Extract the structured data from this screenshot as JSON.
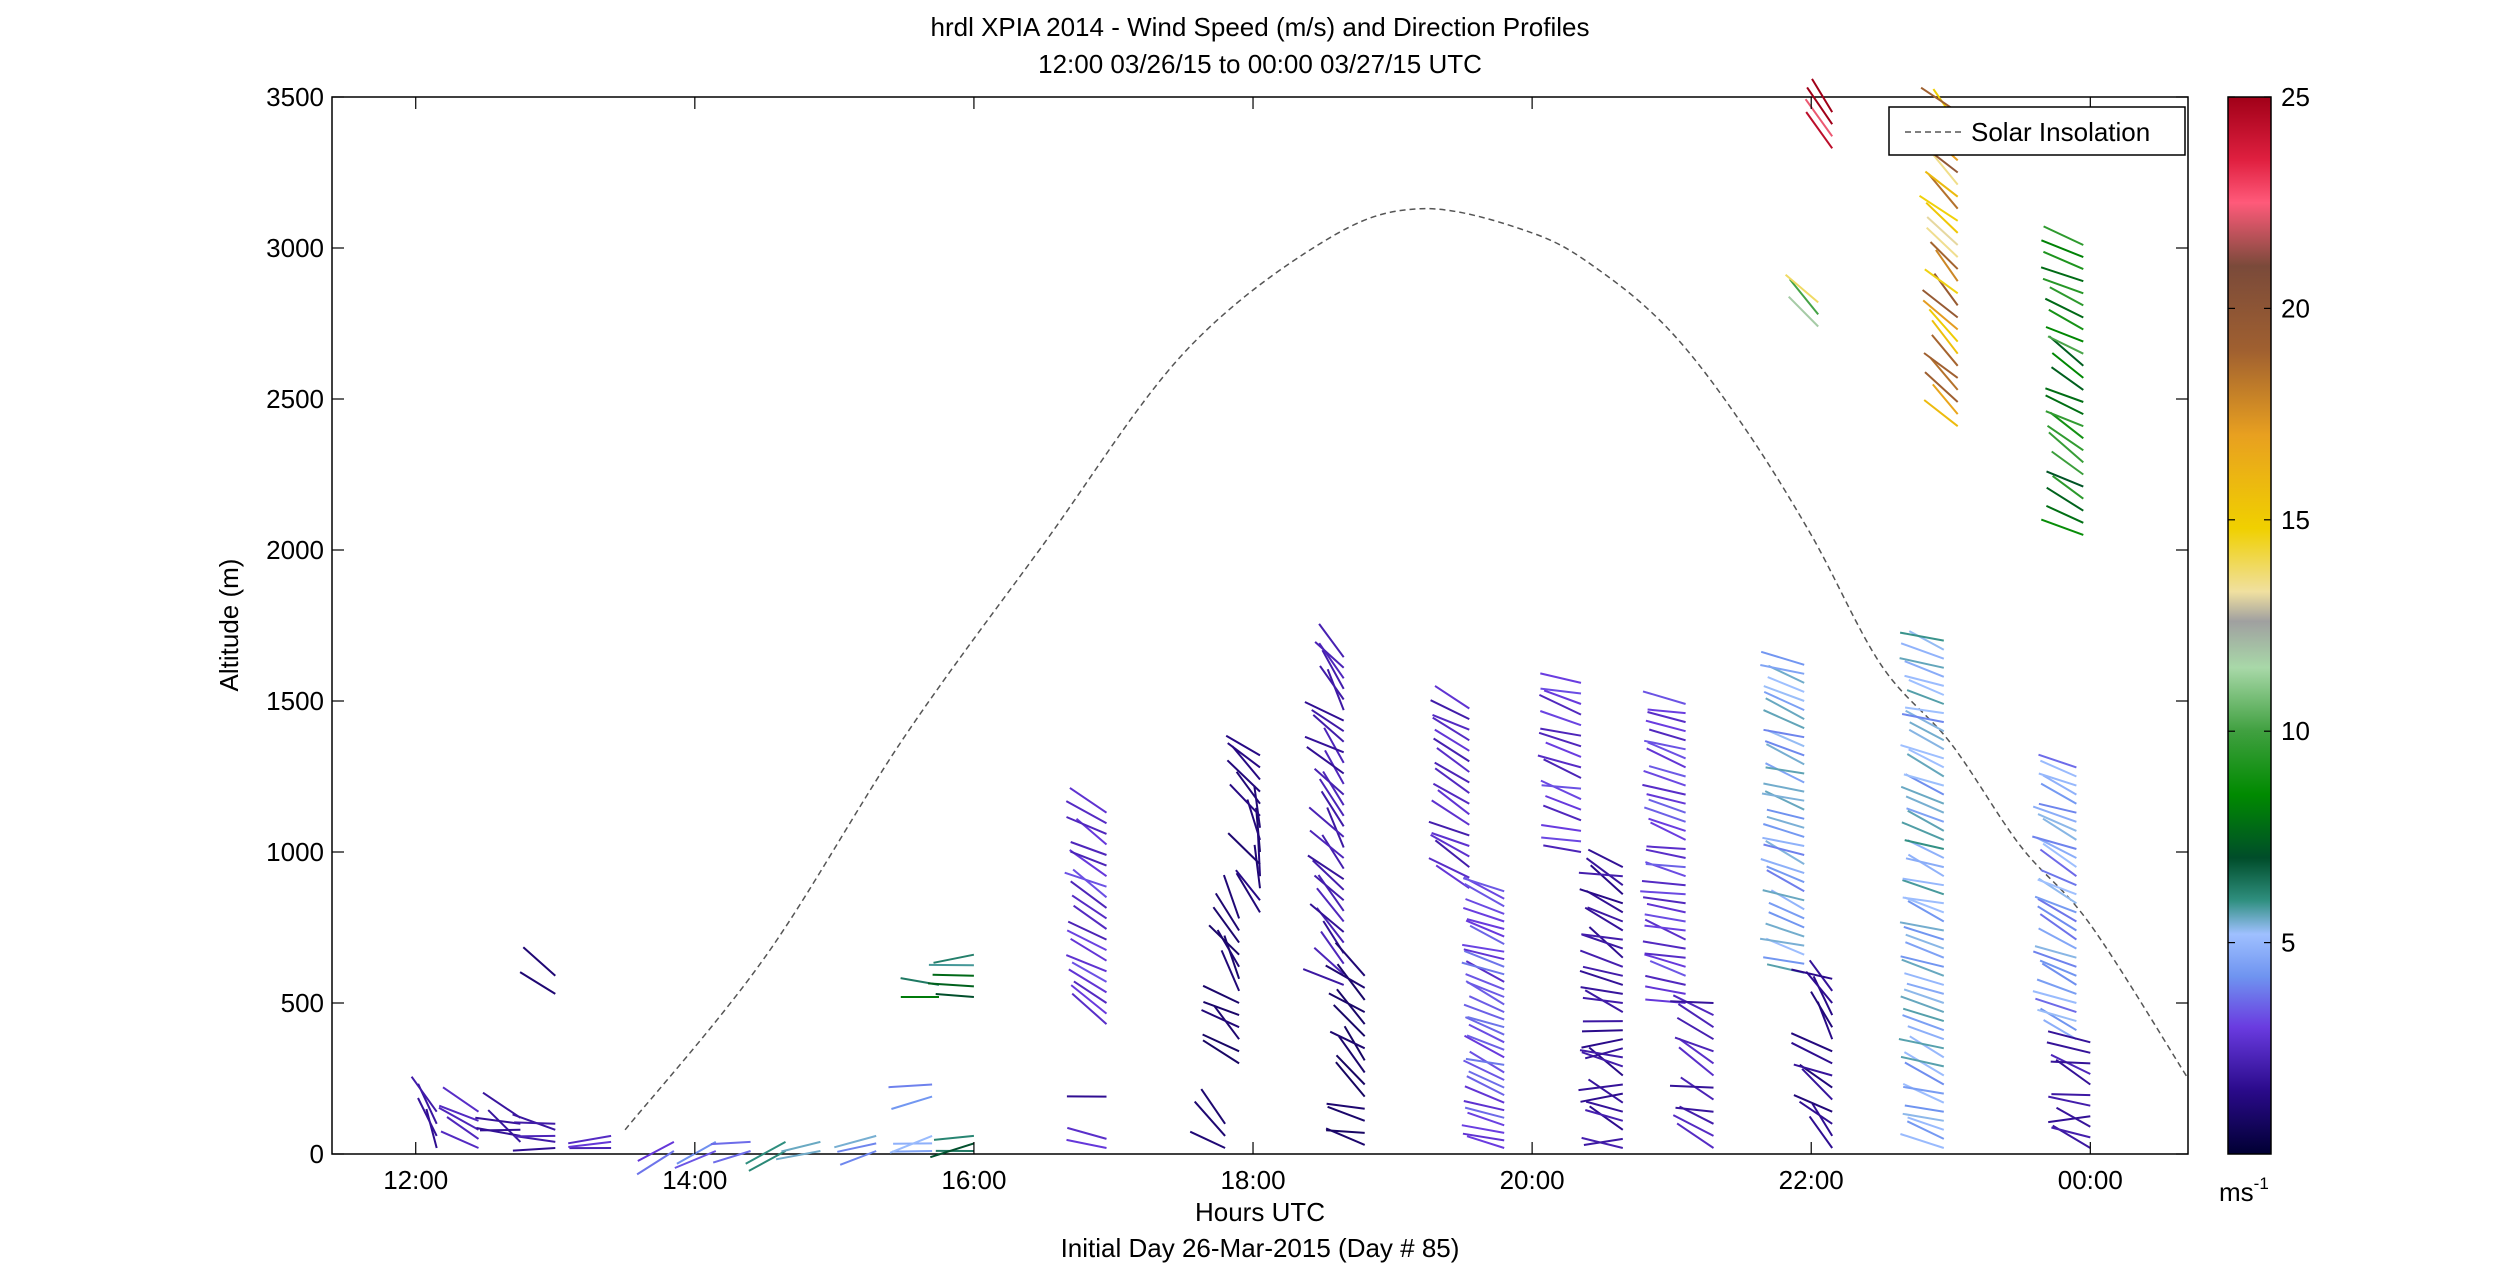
{
  "title_line1": "hrdl XPIA 2014 - Wind Speed (m/s) and Direction Profiles",
  "title_line2": "12:00 03/26/15 to 00:00 03/27/15  UTC",
  "xlabel": "Hours UTC",
  "subtitle": "Initial Day 26-Mar-2015 (Day # 85)",
  "ylabel": "Altitude (m)",
  "legend_label": "Solar Insolation",
  "colorbar_unit": "ms",
  "colorbar_unit_exp": "-1",
  "chart_data": {
    "type": "wind-barb-profile",
    "x_unit": "hours UTC from 12:00 03/26/15",
    "xlim": [
      11.4,
      24.7
    ],
    "ylim": [
      0,
      3500
    ],
    "x_ticks": [
      12,
      14,
      16,
      18,
      20,
      22,
      24
    ],
    "x_tick_labels": [
      "12:00",
      "14:00",
      "16:00",
      "18:00",
      "20:00",
      "22:00",
      "00:00"
    ],
    "y_ticks": [
      0,
      500,
      1000,
      1500,
      2000,
      2500,
      3000,
      3500
    ],
    "y_tick_labels": [
      "0",
      "500",
      "1000",
      "1500",
      "2000",
      "2500",
      "3000",
      "3500"
    ],
    "colorbar": {
      "range": [
        0,
        25
      ],
      "ticks": [
        5,
        10,
        15,
        20,
        25
      ],
      "tick_labels": [
        "5",
        "10",
        "15",
        "20",
        "25"
      ],
      "stops": [
        {
          "v": 0,
          "c": "#000033"
        },
        {
          "v": 1.5,
          "c": "#2a0a8a"
        },
        {
          "v": 3,
          "c": "#6a3be0"
        },
        {
          "v": 4.2,
          "c": "#6f94f0"
        },
        {
          "v": 5.2,
          "c": "#9fc0ff"
        },
        {
          "v": 6,
          "c": "#2f8f7f"
        },
        {
          "v": 7,
          "c": "#004d2a"
        },
        {
          "v": 8.5,
          "c": "#008a00"
        },
        {
          "v": 10,
          "c": "#40a040"
        },
        {
          "v": 11.5,
          "c": "#a8d8a8"
        },
        {
          "v": 12.6,
          "c": "#a0a0a0"
        },
        {
          "v": 13.3,
          "c": "#f0e0a0"
        },
        {
          "v": 14.8,
          "c": "#f0d000"
        },
        {
          "v": 17,
          "c": "#e8a020"
        },
        {
          "v": 19,
          "c": "#a06030"
        },
        {
          "v": 21,
          "c": "#7a4a3a"
        },
        {
          "v": 22.5,
          "c": "#ff5a7a"
        },
        {
          "v": 23.5,
          "c": "#e02040"
        },
        {
          "v": 25,
          "c": "#a00018"
        }
      ]
    },
    "solar_insolation": {
      "style": "dashed",
      "color": "#555555",
      "x": [
        13.5,
        14.5,
        15.5,
        16.5,
        17.5,
        18.5,
        19.2,
        20.0,
        20.5,
        21.0,
        21.5,
        22.0,
        22.5,
        23.0,
        23.5,
        24.0,
        24.7
      ],
      "y": [
        80,
        650,
        1380,
        2020,
        2650,
        3020,
        3130,
        3050,
        2920,
        2720,
        2420,
        2050,
        1620,
        1360,
        1020,
        760,
        250
      ]
    },
    "profiles": [
      {
        "t": 12.15,
        "z0": 20,
        "z1": 140,
        "dz": 40,
        "spd": 2.0,
        "dir": 320
      },
      {
        "t": 12.45,
        "z0": 20,
        "z1": 140,
        "dz": 30,
        "spd": 2.2,
        "dir": 300
      },
      {
        "t": 12.75,
        "z0": 40,
        "z1": 120,
        "dz": 20,
        "spd": 1.8,
        "dir": 290
      },
      {
        "t": 13.0,
        "z0": 20,
        "z1": 100,
        "dz": 20,
        "spd": 2.0,
        "dir": 280
      },
      {
        "t": 13.0,
        "z0": 530,
        "z1": 590,
        "dz": 60,
        "spd": 1.2,
        "dir": 310
      },
      {
        "t": 13.4,
        "z0": 20,
        "z1": 60,
        "dz": 20,
        "spd": 2.5,
        "dir": 260
      },
      {
        "t": 13.85,
        "z0": 10,
        "z1": 40,
        "dz": 30,
        "spd": 3.2,
        "dir": 240
      },
      {
        "t": 14.15,
        "z0": 10,
        "z1": 40,
        "dz": 30,
        "spd": 3.6,
        "dir": 250
      },
      {
        "t": 14.4,
        "z0": 10,
        "z1": 40,
        "dz": 30,
        "spd": 4.4,
        "dir": 255
      },
      {
        "t": 14.65,
        "z0": 10,
        "z1": 40,
        "dz": 30,
        "spd": 5.8,
        "dir": 250
      },
      {
        "t": 14.9,
        "z0": 10,
        "z1": 40,
        "dz": 30,
        "spd": 4.8,
        "dir": 250
      },
      {
        "t": 15.3,
        "z0": 10,
        "z1": 60,
        "dz": 25,
        "spd": 5.0,
        "dir": 255
      },
      {
        "t": 15.7,
        "z0": 10,
        "z1": 80,
        "dz": 25,
        "spd": 5.1,
        "dir": 260
      },
      {
        "t": 16.0,
        "z0": 10,
        "z1": 60,
        "dz": 25,
        "spd": 6.0,
        "dir": 260
      },
      {
        "t": 15.7,
        "z0": 190,
        "z1": 230,
        "dz": 40,
        "spd": 4.8,
        "dir": 260
      },
      {
        "t": 15.75,
        "z0": 520,
        "z1": 560,
        "dz": 40,
        "spd": 7.5,
        "dir": 270
      },
      {
        "t": 16.0,
        "z0": 520,
        "z1": 660,
        "dz": 35,
        "spd": 6.5,
        "dir": 265
      },
      {
        "t": 16.95,
        "z0": 20,
        "z1": 50,
        "dz": 30,
        "spd": 2.5,
        "dir": 280
      },
      {
        "t": 16.95,
        "z0": 190,
        "z1": 190,
        "dz": 40,
        "spd": 1.5,
        "dir": 275
      },
      {
        "t": 16.95,
        "z0": 430,
        "z1": 1140,
        "dz": 35,
        "spd": 2.8,
        "dir": 300
      },
      {
        "t": 17.8,
        "z0": 20,
        "z1": 100,
        "dz": 40,
        "spd": 1.2,
        "dir": 300
      },
      {
        "t": 17.9,
        "z0": 300,
        "z1": 800,
        "dz": 40,
        "spd": 1.0,
        "dir": 320
      },
      {
        "t": 18.05,
        "z0": 800,
        "z1": 1320,
        "dz": 40,
        "spd": 1.2,
        "dir": 330
      },
      {
        "t": 18.65,
        "z0": 560,
        "z1": 1660,
        "dz": 35,
        "spd": 2.0,
        "dir": 320
      },
      {
        "t": 18.8,
        "z0": 30,
        "z1": 600,
        "dz": 40,
        "spd": 1.0,
        "dir": 300
      },
      {
        "t": 19.55,
        "z0": 880,
        "z1": 1500,
        "dz": 35,
        "spd": 2.4,
        "dir": 300
      },
      {
        "t": 19.8,
        "z0": 20,
        "z1": 880,
        "dz": 25,
        "spd": 3.2,
        "dir": 290
      },
      {
        "t": 20.35,
        "z0": 1000,
        "z1": 1580,
        "dz": 35,
        "spd": 2.8,
        "dir": 285
      },
      {
        "t": 20.65,
        "z0": 20,
        "z1": 950,
        "dz": 30,
        "spd": 1.8,
        "dir": 285
      },
      {
        "t": 21.1,
        "z0": 500,
        "z1": 1500,
        "dz": 30,
        "spd": 3.0,
        "dir": 285
      },
      {
        "t": 21.3,
        "z0": 20,
        "z1": 500,
        "dz": 40,
        "spd": 2.2,
        "dir": 300
      },
      {
        "t": 21.95,
        "z0": 600,
        "z1": 1620,
        "dz": 30,
        "spd": 4.8,
        "dir": 290
      },
      {
        "t": 22.15,
        "z0": 20,
        "z1": 600,
        "dz": 40,
        "spd": 1.5,
        "dir": 310
      },
      {
        "t": 22.05,
        "z0": 2740,
        "z1": 2840,
        "dz": 40,
        "spd": 12.5,
        "dir": 310
      },
      {
        "t": 22.15,
        "z0": 3330,
        "z1": 3480,
        "dz": 40,
        "spd": 24.0,
        "dir": 320
      },
      {
        "t": 22.95,
        "z0": 20,
        "z1": 1720,
        "dz": 30,
        "spd": 5.0,
        "dir": 290
      },
      {
        "t": 23.05,
        "z0": 2410,
        "z1": 3480,
        "dz": 40,
        "spd": 16.5,
        "dir": 315
      },
      {
        "t": 23.9,
        "z0": 380,
        "z1": 1300,
        "dz": 30,
        "spd": 4.5,
        "dir": 295
      },
      {
        "t": 24.0,
        "z0": 20,
        "z1": 380,
        "dz": 35,
        "spd": 2.0,
        "dir": 290
      },
      {
        "t": 23.95,
        "z0": 2050,
        "z1": 3030,
        "dz": 40,
        "spd": 8.5,
        "dir": 300
      }
    ]
  }
}
